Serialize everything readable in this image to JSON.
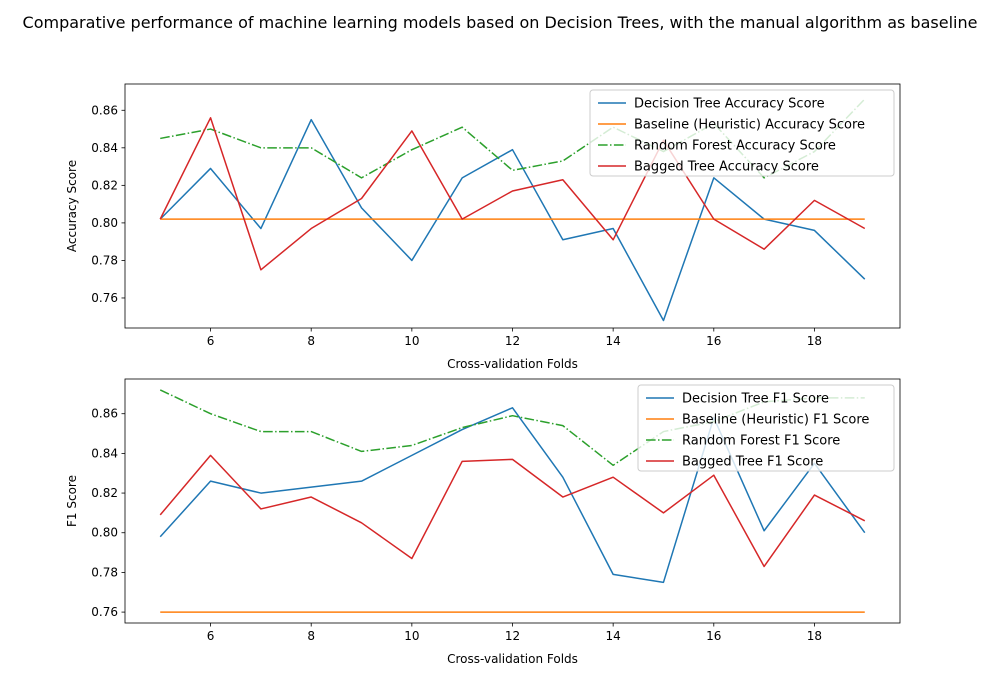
{
  "figure_title": "Comparative performance of machine learning models based on Decision Trees, with the manual algorithm as baseline",
  "colors": {
    "decision_tree": "#1f77b4",
    "baseline": "#ff7f0e",
    "random_forest": "#2ca02c",
    "bagged_tree": "#d62728"
  },
  "chart_data": [
    {
      "type": "line",
      "xlabel": "Cross-validation Folds",
      "ylabel": "Accuracy Score",
      "xlim": [
        4.3,
        19.7
      ],
      "ylim": [
        0.744,
        0.874
      ],
      "xticks": [
        6,
        8,
        10,
        12,
        14,
        16,
        18
      ],
      "yticks": [
        0.76,
        0.78,
        0.8,
        0.82,
        0.84,
        0.86
      ],
      "legend_position": "top-right",
      "x": [
        5,
        6,
        7,
        8,
        9,
        10,
        11,
        12,
        13,
        14,
        15,
        16,
        17,
        18,
        19
      ],
      "series": [
        {
          "name": "Decision Tree Accuracy Score",
          "color_key": "decision_tree",
          "dash": "solid",
          "values": [
            0.802,
            0.829,
            0.797,
            0.855,
            0.808,
            0.78,
            0.824,
            0.839,
            0.791,
            0.797,
            0.748,
            0.824,
            0.802,
            0.796,
            0.77
          ]
        },
        {
          "name": "Baseline (Heuristic) Accuracy Score",
          "color_key": "baseline",
          "dash": "solid",
          "values": [
            0.802,
            0.802,
            0.802,
            0.802,
            0.802,
            0.802,
            0.802,
            0.802,
            0.802,
            0.802,
            0.802,
            0.802,
            0.802,
            0.802,
            0.802
          ]
        },
        {
          "name": "Random Forest Accuracy Score",
          "color_key": "random_forest",
          "dash": "dashdot",
          "values": [
            0.845,
            0.85,
            0.84,
            0.84,
            0.824,
            0.839,
            0.851,
            0.828,
            0.833,
            0.851,
            0.838,
            0.853,
            0.824,
            0.838,
            0.866
          ]
        },
        {
          "name": "Bagged Tree Accuracy Score",
          "color_key": "bagged_tree",
          "dash": "solid",
          "values": [
            0.802,
            0.856,
            0.775,
            0.797,
            0.813,
            0.849,
            0.802,
            0.817,
            0.823,
            0.791,
            0.844,
            0.802,
            0.786,
            0.812,
            0.797
          ]
        }
      ]
    },
    {
      "type": "line",
      "xlabel": "Cross-validation Folds",
      "ylabel": "F1 Score",
      "xlim": [
        4.3,
        19.7
      ],
      "ylim": [
        0.7545,
        0.8775
      ],
      "xticks": [
        6,
        8,
        10,
        12,
        14,
        16,
        18
      ],
      "yticks": [
        0.76,
        0.78,
        0.8,
        0.82,
        0.84,
        0.86
      ],
      "legend_position": "top-right",
      "x": [
        5,
        6,
        7,
        8,
        9,
        10,
        11,
        12,
        13,
        14,
        15,
        16,
        17,
        18,
        19
      ],
      "series": [
        {
          "name": "Decision Tree F1 Score",
          "color_key": "decision_tree",
          "dash": "solid",
          "values": [
            0.798,
            0.826,
            0.82,
            0.823,
            0.826,
            0.839,
            0.852,
            0.863,
            0.828,
            0.779,
            0.775,
            0.858,
            0.801,
            0.835,
            0.8
          ]
        },
        {
          "name": "Baseline (Heuristic) F1 Score",
          "color_key": "baseline",
          "dash": "solid",
          "values": [
            0.76,
            0.76,
            0.76,
            0.76,
            0.76,
            0.76,
            0.76,
            0.76,
            0.76,
            0.76,
            0.76,
            0.76,
            0.76,
            0.76,
            0.76
          ]
        },
        {
          "name": "Random Forest F1 Score",
          "color_key": "random_forest",
          "dash": "dashdot",
          "values": [
            0.872,
            0.86,
            0.851,
            0.851,
            0.841,
            0.844,
            0.853,
            0.859,
            0.854,
            0.834,
            0.851,
            0.856,
            0.866,
            0.868,
            0.868
          ]
        },
        {
          "name": "Bagged Tree F1 Score",
          "color_key": "bagged_tree",
          "dash": "solid",
          "values": [
            0.809,
            0.839,
            0.812,
            0.818,
            0.805,
            0.787,
            0.836,
            0.837,
            0.818,
            0.828,
            0.81,
            0.829,
            0.783,
            0.819,
            0.806
          ]
        }
      ]
    }
  ]
}
